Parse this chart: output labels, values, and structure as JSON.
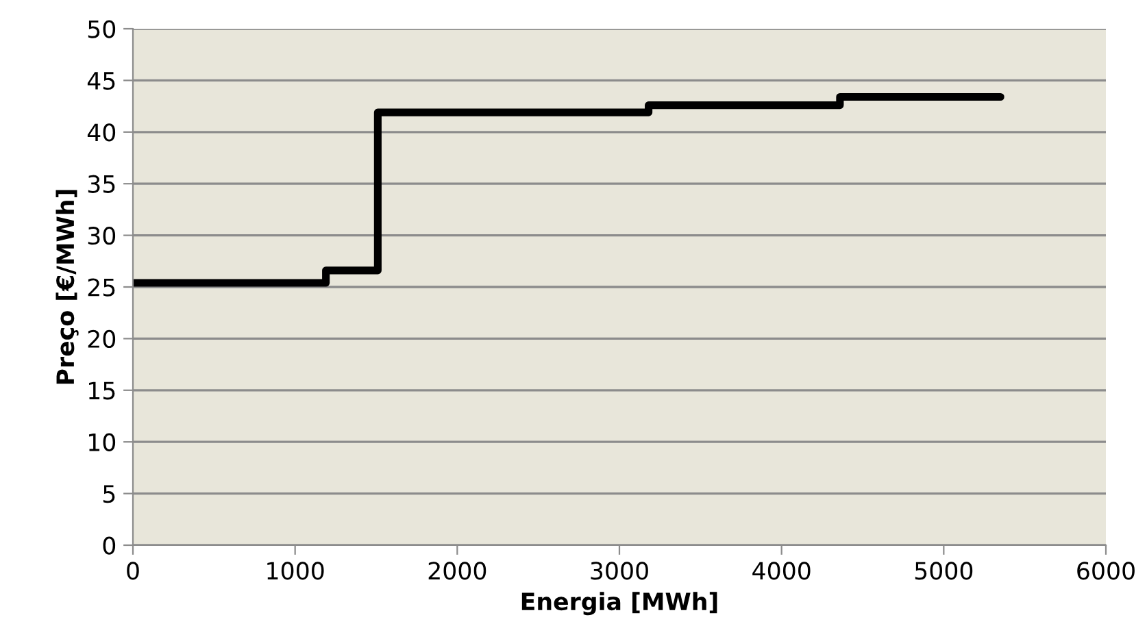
{
  "chart_data": {
    "type": "step",
    "xlabel": "Energia [MWh]",
    "ylabel": "Preço [€/MWh]",
    "x": [
      0,
      1190,
      1510,
      3180,
      4360,
      5350
    ],
    "series": [
      {
        "color": "#000000",
        "values": [
          25.4,
          26.6,
          41.9,
          42.6,
          43.4,
          43.4
        ]
      }
    ],
    "xlim": [
      0,
      6000
    ],
    "xticks": [
      0,
      1000,
      2000,
      3000,
      4000,
      5000,
      6000
    ],
    "ylim": [
      0,
      50
    ],
    "yticks": [
      0,
      5,
      10,
      15,
      20,
      25,
      30,
      35,
      40,
      45,
      50
    ],
    "grid": "y",
    "legend": false,
    "marker": "none",
    "line_style": "solid"
  }
}
